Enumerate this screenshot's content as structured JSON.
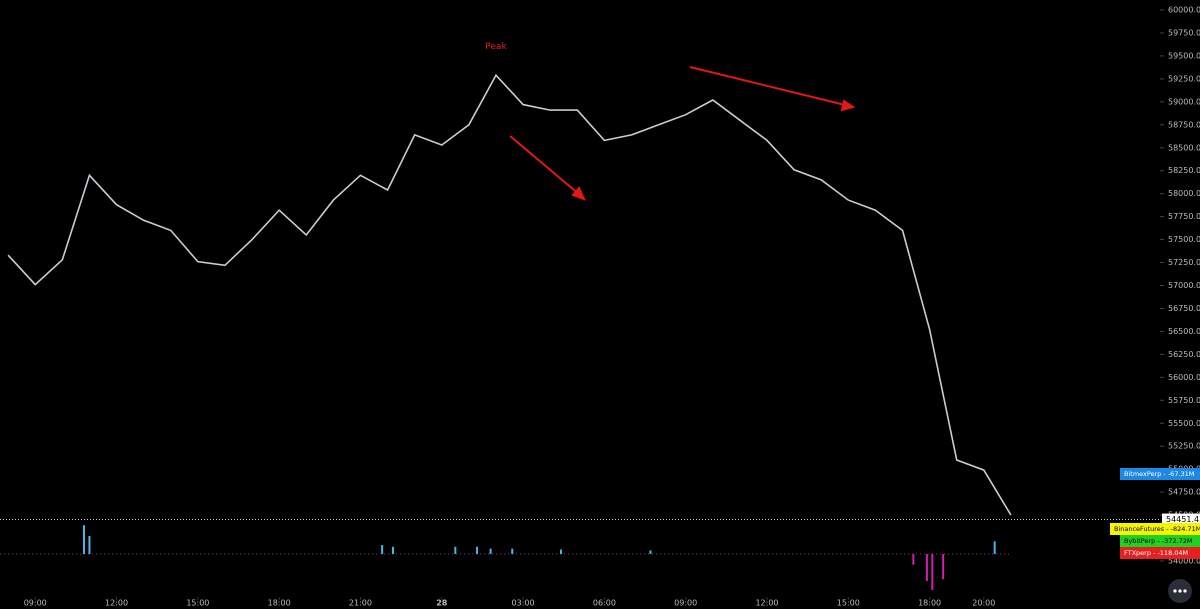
{
  "chart_data": [
    {
      "type": "line",
      "color": "#c8ccd4",
      "x": [
        -1,
        0,
        1,
        2,
        3,
        4,
        5,
        6,
        7,
        8,
        9,
        10,
        11,
        12,
        13,
        14,
        15,
        16,
        17,
        18,
        19,
        20,
        21,
        22,
        23,
        24,
        25,
        26,
        27,
        28,
        29,
        30,
        31,
        32,
        33,
        34,
        35,
        36
      ],
      "values": [
        57330,
        57010,
        57280,
        58200,
        57880,
        57710,
        57600,
        57260,
        57220,
        57500,
        57820,
        57550,
        57930,
        58200,
        58040,
        58640,
        58530,
        58750,
        59290,
        58970,
        58910,
        58910,
        58580,
        58640,
        58750,
        58860,
        59020,
        58800,
        58580,
        58260,
        58150,
        57930,
        57820,
        57600,
        56520,
        55100,
        54990,
        54500
      ],
      "xlim": [
        -1.3,
        41.5
      ],
      "xticks": [
        {
          "value": 0,
          "label": "09:00"
        },
        {
          "value": 3,
          "label": "12:00"
        },
        {
          "value": 6,
          "label": "15:00"
        },
        {
          "value": 9,
          "label": "18:00"
        },
        {
          "value": 12,
          "label": "21:00"
        },
        {
          "value": 15,
          "label": "28"
        },
        {
          "value": 18,
          "label": "03:00"
        },
        {
          "value": 21,
          "label": "06:00"
        },
        {
          "value": 24,
          "label": "09:00"
        },
        {
          "value": 27,
          "label": "12:00"
        },
        {
          "value": 30,
          "label": "15:00"
        },
        {
          "value": 33,
          "label": "18:00"
        },
        {
          "value": 35,
          "label": "20:00"
        }
      ],
      "ylim": [
        54000,
        60000
      ],
      "yticks": [
        {
          "value": 54000,
          "label": "54000.00"
        },
        {
          "value": 54250,
          "label": "54250.00"
        },
        {
          "value": 54500,
          "label": "54500.00"
        },
        {
          "value": 54750,
          "label": "54750.00"
        },
        {
          "value": 55000,
          "label": "55000.00"
        },
        {
          "value": 55250,
          "label": "55250.00"
        },
        {
          "value": 55500,
          "label": "55500.00"
        },
        {
          "value": 55750,
          "label": "55750.00"
        },
        {
          "value": 56000,
          "label": "56000.00"
        },
        {
          "value": 56250,
          "label": "56250.00"
        },
        {
          "value": 56500,
          "label": "56500.00"
        },
        {
          "value": 56750,
          "label": "56750.00"
        },
        {
          "value": 57000,
          "label": "57000.00"
        },
        {
          "value": 57250,
          "label": "57250.00"
        },
        {
          "value": 57500,
          "label": "57500.00"
        },
        {
          "value": 57750,
          "label": "57750.00"
        },
        {
          "value": 58000,
          "label": "58000.00"
        },
        {
          "value": 58250,
          "label": "58250.00"
        },
        {
          "value": 58500,
          "label": "58500.00"
        },
        {
          "value": 58750,
          "label": "58750.00"
        },
        {
          "value": 59000,
          "label": "59000.00"
        },
        {
          "value": 59250,
          "label": "59250.00"
        },
        {
          "value": 59500,
          "label": "59500.00"
        },
        {
          "value": 59750,
          "label": "59750.00"
        },
        {
          "value": 60000,
          "label": "60000.00"
        }
      ],
      "last_price": {
        "value": 54451.43,
        "label": "54451.43"
      },
      "annotation": {
        "text": "Peak",
        "x": 17,
        "y": 59600,
        "color": "#e02020"
      },
      "legend_labels": [
        {
          "text": "BitmexPerp  -  -67.31M",
          "color": "#1e88e5",
          "text_color": "#ffffff"
        },
        {
          "text": "BinanceFutures  -  -824.71M",
          "color": "#f5f500",
          "text_color": "#000000"
        },
        {
          "text": "BybitPerp  -  -372.72M",
          "color": "#22d022",
          "text_color": "#000000"
        },
        {
          "text": "FTXperp  -  -118.04M",
          "color": "#e52020",
          "text_color": "#ffffff"
        }
      ]
    },
    {
      "type": "bar",
      "xlim": [
        -1.3,
        41.5
      ],
      "ylim": [
        -40,
        40
      ],
      "x": [
        1.8,
        2.0,
        12.8,
        13.2,
        15.5,
        16.3,
        16.8,
        17.6,
        19.4,
        22.7,
        32.4,
        32.9,
        33.1,
        33.5,
        35.4
      ],
      "values": [
        32,
        20,
        10,
        8,
        8,
        8,
        6,
        6,
        5,
        4,
        -12,
        -30,
        -40,
        -28,
        14
      ],
      "colors": [
        "#4fb3e8",
        "#4fb3e8",
        "#4fb3e8",
        "#4fb3e8",
        "#4fb3e8",
        "#4fb3e8",
        "#4fb3e8",
        "#4fb3e8",
        "#4fb3e8",
        "#4fb3e8",
        "#d020b0",
        "#d020b0",
        "#d020b0",
        "#d020b0",
        "#4fb3e8"
      ],
      "baseline_value": 0
    }
  ]
}
